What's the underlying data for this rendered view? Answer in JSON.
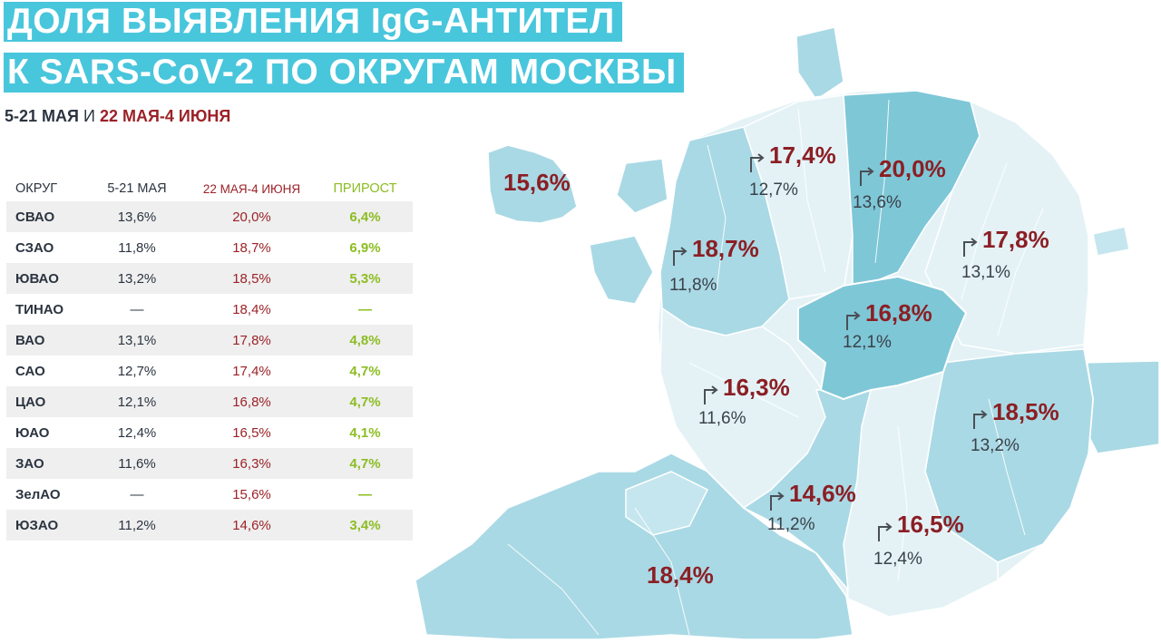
{
  "title": {
    "line1": "ДОЛЯ ВЫЯВЛЕНИЯ IgG-АНТИТЕЛ",
    "line2": "К SARS-CoV-2 ПО ОКРУГАМ МОСКВЫ"
  },
  "subtitle": {
    "period1": "5-21 МАЯ",
    "conjunction": "И",
    "period2": "22 МАЯ-4 ИЮНЯ"
  },
  "colors": {
    "title_bg": "#48c6dc",
    "period1": "#2b3440",
    "period2": "#9b2228",
    "growth": "#8cbd22",
    "map_light": "#e4f2f6",
    "map_mid": "#a9d9e5",
    "map_dark": "#7ec7d7"
  },
  "chart_data": {
    "type": "table",
    "columns": [
      "ОКРУГ",
      "5-21 МАЯ",
      "22 МАЯ-4 ИЮНЯ",
      "ПРИРОСТ"
    ],
    "rows": [
      {
        "okrug": "СВАО",
        "may5_21": "13,6%",
        "may22_jun4": "20,0%",
        "growth": "6,4%"
      },
      {
        "okrug": "СЗАО",
        "may5_21": "11,8%",
        "may22_jun4": "18,7%",
        "growth": "6,9%"
      },
      {
        "okrug": "ЮВАО",
        "may5_21": "13,2%",
        "may22_jun4": "18,5%",
        "growth": "5,3%"
      },
      {
        "okrug": "ТИНАО",
        "may5_21": "—",
        "may22_jun4": "18,4%",
        "growth": "—"
      },
      {
        "okrug": "ВАО",
        "may5_21": "13,1%",
        "may22_jun4": "17,8%",
        "growth": "4,8%"
      },
      {
        "okrug": "САО",
        "may5_21": "12,7%",
        "may22_jun4": "17,4%",
        "growth": "4,7%"
      },
      {
        "okrug": "ЦАО",
        "may5_21": "12,1%",
        "may22_jun4": "16,8%",
        "growth": "4,7%"
      },
      {
        "okrug": "ЮАО",
        "may5_21": "12,4%",
        "may22_jun4": "16,5%",
        "growth": "4,1%"
      },
      {
        "okrug": "ЗАО",
        "may5_21": "11,6%",
        "may22_jun4": "16,3%",
        "growth": "4,7%"
      },
      {
        "okrug": "ЗелАО",
        "may5_21": "—",
        "may22_jun4": "15,6%",
        "growth": "—"
      },
      {
        "okrug": "ЮЗАО",
        "may5_21": "11,2%",
        "may22_jun4": "14,6%",
        "growth": "3,4%"
      }
    ],
    "map_labels": [
      {
        "okrug": "ЗелАО",
        "new": "15,6%",
        "old": ""
      },
      {
        "okrug": "САО",
        "new": "17,4%",
        "old": "12,7%"
      },
      {
        "okrug": "СВАО",
        "new": "20,0%",
        "old": "13,6%"
      },
      {
        "okrug": "СЗАО",
        "new": "18,7%",
        "old": "11,8%"
      },
      {
        "okrug": "ВАО",
        "new": "17,8%",
        "old": "13,1%"
      },
      {
        "okrug": "ЦАО",
        "new": "16,8%",
        "old": "12,1%"
      },
      {
        "okrug": "ЗАО",
        "new": "16,3%",
        "old": "11,6%"
      },
      {
        "okrug": "ЮВАО",
        "new": "18,5%",
        "old": "13,2%"
      },
      {
        "okrug": "ЮЗАО",
        "new": "14,6%",
        "old": "11,2%"
      },
      {
        "okrug": "ЮАО",
        "new": "16,5%",
        "old": "12,4%"
      },
      {
        "okrug": "ТИНАО",
        "new": "18,4%",
        "old": ""
      }
    ]
  }
}
